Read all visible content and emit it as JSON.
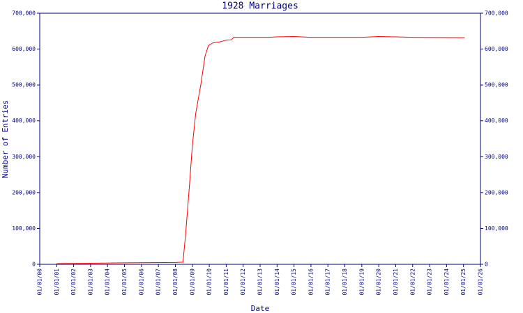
{
  "chart_data": {
    "type": "line",
    "title": "1928 Marriages",
    "xlabel": "Date",
    "ylabel": "Number of Entries",
    "color": "#ff0000",
    "x": [
      1.0,
      3.0,
      5.0,
      8.0,
      8.45,
      8.6,
      8.8,
      9.0,
      9.2,
      9.5,
      9.75,
      9.95,
      10.2,
      10.6,
      11.0,
      11.3,
      11.45,
      13.5,
      14.0,
      15.0,
      16.0,
      19.0,
      20.0,
      21.0,
      22.0,
      25.07
    ],
    "values": [
      2000,
      3000,
      4000,
      5000,
      6000,
      80000,
      200000,
      330000,
      420000,
      500000,
      580000,
      610000,
      617000,
      620000,
      625000,
      626000,
      633000,
      633000,
      634000,
      635000,
      633000,
      633000,
      635000,
      634000,
      633000,
      632000
    ],
    "xlim": [
      0,
      26
    ],
    "xticks": [
      {
        "value": 0,
        "label": "01/01/00"
      },
      {
        "value": 1,
        "label": "01/01/01"
      },
      {
        "value": 2,
        "label": "01/01/02"
      },
      {
        "value": 3,
        "label": "01/01/03"
      },
      {
        "value": 4,
        "label": "01/01/04"
      },
      {
        "value": 5,
        "label": "01/01/05"
      },
      {
        "value": 6,
        "label": "01/01/06"
      },
      {
        "value": 7,
        "label": "01/01/07"
      },
      {
        "value": 8,
        "label": "01/01/08"
      },
      {
        "value": 9,
        "label": "01/01/09"
      },
      {
        "value": 10,
        "label": "01/01/10"
      },
      {
        "value": 11,
        "label": "01/01/11"
      },
      {
        "value": 12,
        "label": "01/01/12"
      },
      {
        "value": 13,
        "label": "01/01/13"
      },
      {
        "value": 14,
        "label": "01/01/14"
      },
      {
        "value": 15,
        "label": "01/01/15"
      },
      {
        "value": 16,
        "label": "01/01/16"
      },
      {
        "value": 17,
        "label": "01/01/17"
      },
      {
        "value": 18,
        "label": "01/01/18"
      },
      {
        "value": 19,
        "label": "01/01/19"
      },
      {
        "value": 20,
        "label": "01/01/20"
      },
      {
        "value": 21,
        "label": "01/01/21"
      },
      {
        "value": 22,
        "label": "01/01/22"
      },
      {
        "value": 23,
        "label": "01/01/23"
      },
      {
        "value": 24,
        "label": "01/01/24"
      },
      {
        "value": 25,
        "label": "01/01/25"
      },
      {
        "value": 26,
        "label": "01/01/26"
      }
    ],
    "ylim": [
      0,
      700000
    ],
    "yticks": [
      0,
      {
        "value": 100000,
        "label": "100,000"
      },
      {
        "value": 200000,
        "label": "200,000"
      },
      {
        "value": 300000,
        "label": "300,000"
      },
      {
        "value": 400000,
        "label": "400,000"
      },
      {
        "value": 500000,
        "label": "500,000"
      },
      {
        "value": 600000,
        "label": "600,000"
      },
      {
        "value": 700000,
        "label": "700,000"
      }
    ]
  }
}
